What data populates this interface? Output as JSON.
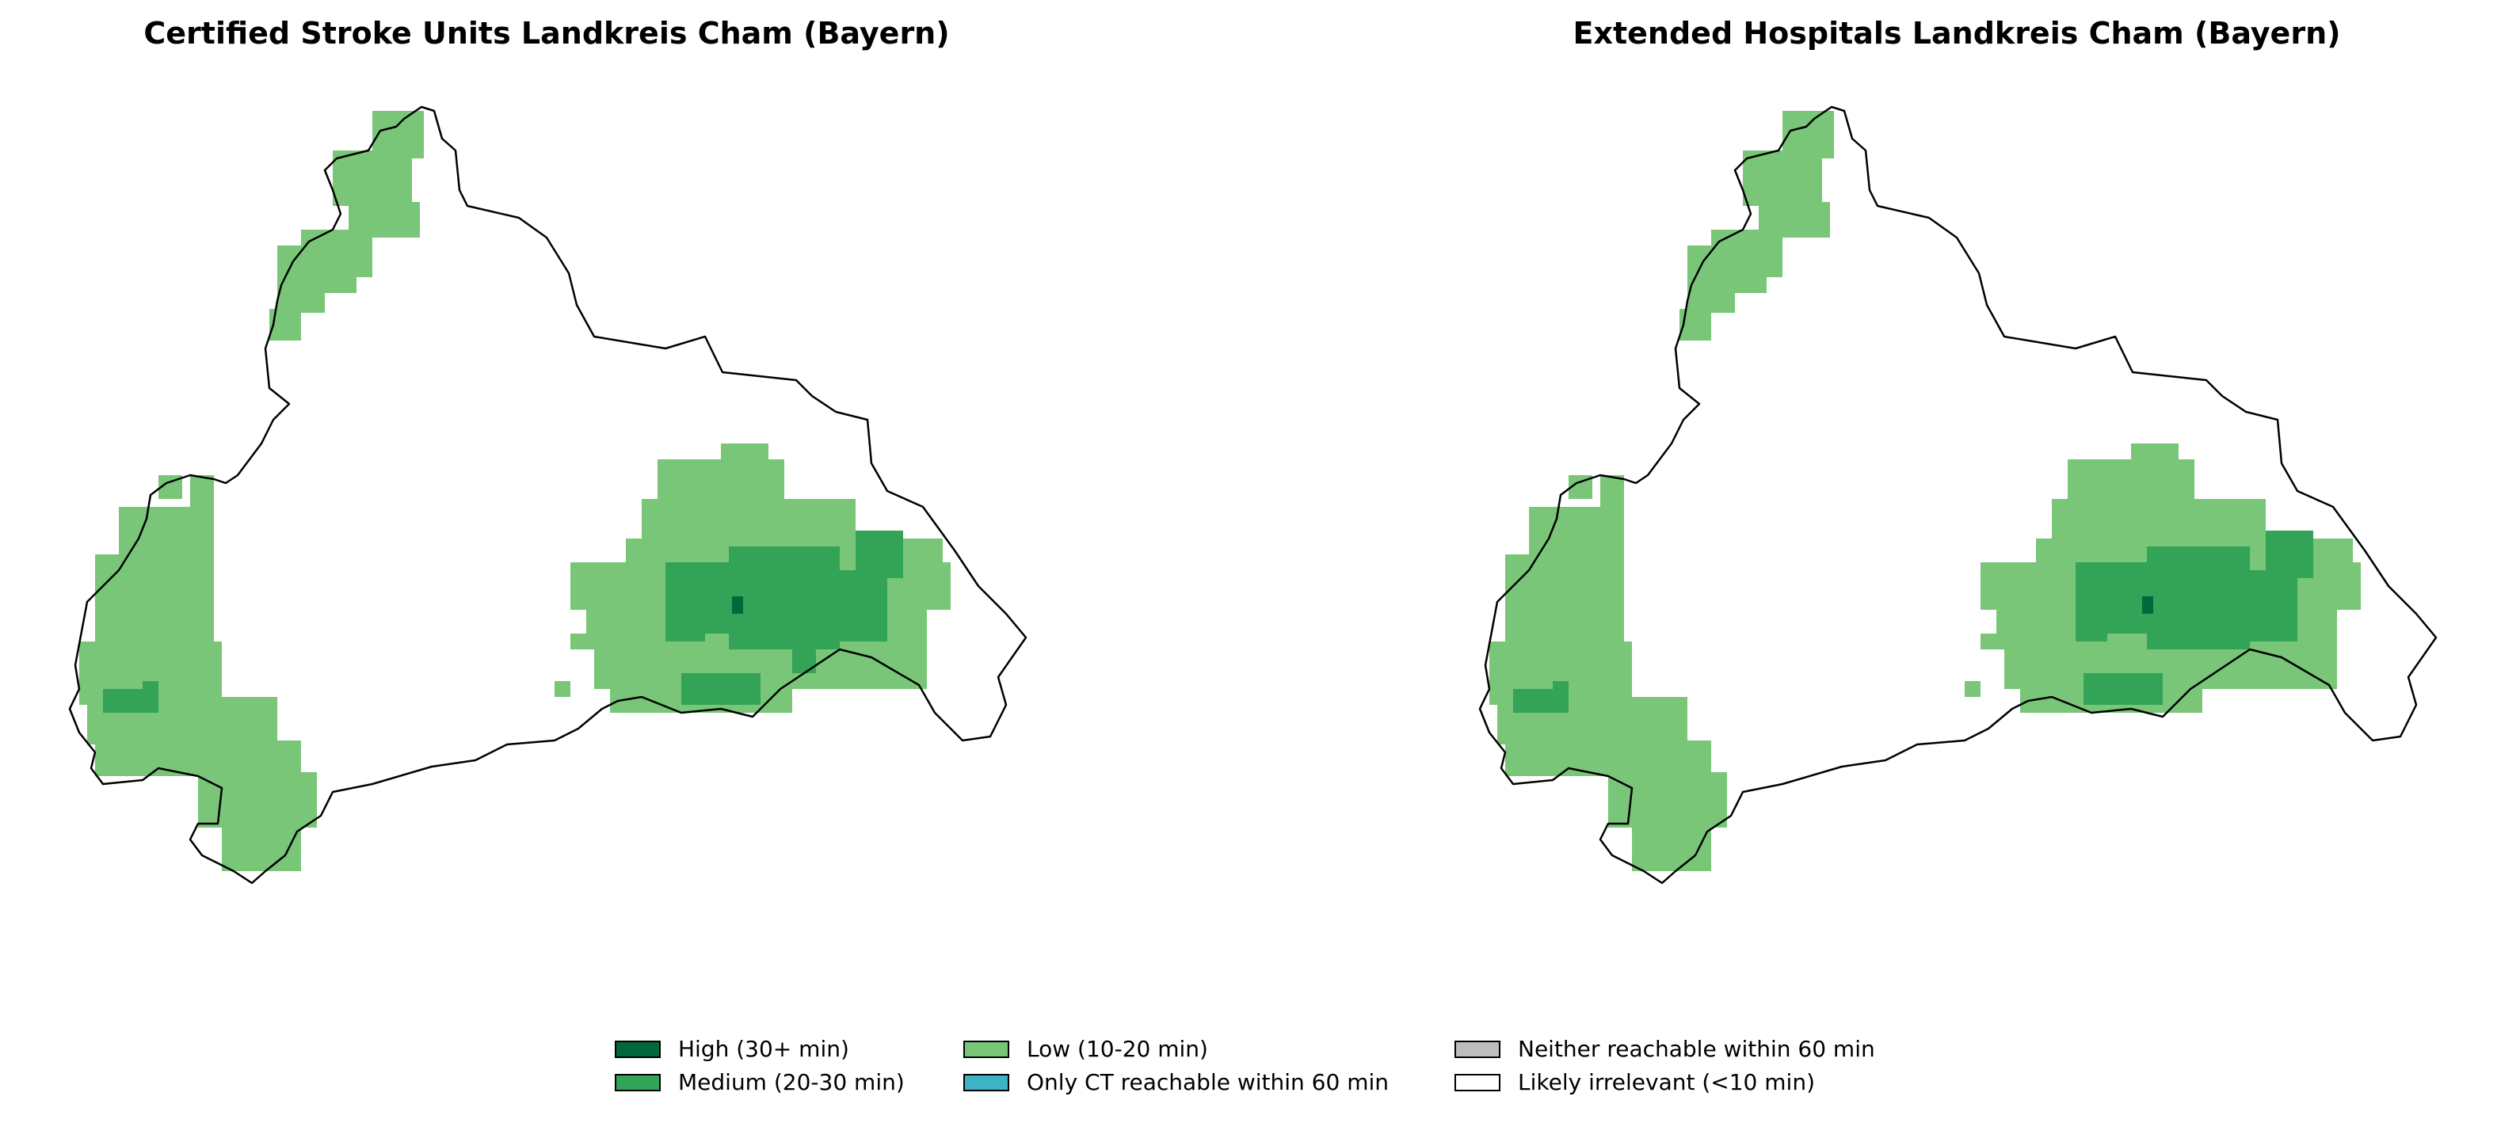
{
  "panels": [
    {
      "title": "Certified Stroke Units Landkreis Cham (Bayern)"
    },
    {
      "title": "Extended Hospitals Landkreis Cham (Bayern)"
    }
  ],
  "legend": [
    {
      "label": "High (30+ min)",
      "color": "#00683a"
    },
    {
      "label": "Medium (20-30 min)",
      "color": "#33a457"
    },
    {
      "label": "Low (10-20 min)",
      "color": "#79c679"
    },
    {
      "label": "Only CT reachable within 60 min",
      "color": "#3fb3c6"
    },
    {
      "label": "Neither reachable within 60 min",
      "color": "#bdbdbd"
    },
    {
      "label": "Likely irrelevant (<10 min)",
      "color": "#ffffff"
    }
  ],
  "colors": {
    "boundary": "#000000"
  }
}
